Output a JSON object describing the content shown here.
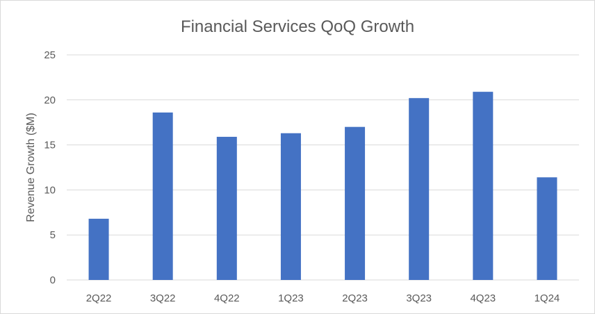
{
  "chart_data": {
    "type": "bar",
    "title": "Financial Services QoQ Growth",
    "xlabel": "",
    "ylabel": "Revenue Growth ($M)",
    "categories": [
      "2Q22",
      "3Q22",
      "4Q22",
      "1Q23",
      "2Q23",
      "3Q23",
      "4Q23",
      "1Q24"
    ],
    "values": [
      6.8,
      18.6,
      15.9,
      16.3,
      17.0,
      20.2,
      20.9,
      11.4
    ],
    "ylim": [
      0,
      25
    ],
    "yticks": [
      "0",
      "5",
      "10",
      "15",
      "20",
      "25"
    ],
    "grid": true,
    "legend": "none",
    "bar_color": "#4472c4"
  }
}
